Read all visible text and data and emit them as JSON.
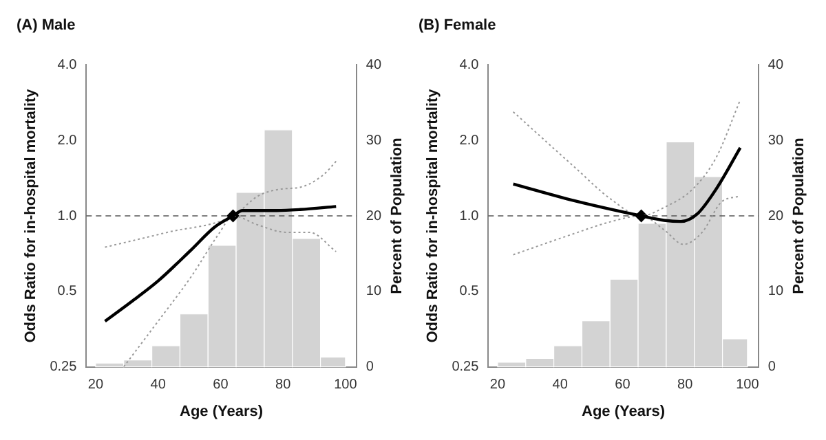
{
  "chart_data": [
    {
      "type": "histogram",
      "title": "(A) Male",
      "xlabel": "Age (Years)",
      "ylabel": "Odds Ratio for in-hospital mortality",
      "y2label": "Percent of Population",
      "log": "y",
      "xlim": [
        17,
        103.5
      ],
      "xticks": [
        20,
        40,
        60,
        80,
        100
      ],
      "ylim": [
        0.25,
        4
      ],
      "yticks": [
        0.25,
        {
          "value": 0.5,
          "label": "0.5"
        },
        {
          "value": 1,
          "label": "1.0"
        },
        {
          "value": 2,
          "label": "2.0"
        },
        {
          "value": 4,
          "label": "4.0"
        }
      ],
      "y2lim": [
        0,
        40
      ],
      "y2ticks": [
        0,
        10,
        20,
        30,
        40
      ],
      "ref_lines": [
        {
          "axis": "y",
          "value": 1,
          "line_style": "dashed",
          "color": "#555555"
        }
      ],
      "series": [
        {
          "axis": "y2",
          "bins": [
            20,
            29,
            38,
            47,
            56,
            65,
            74,
            83,
            92,
            100
          ],
          "values": [
            0.5,
            0.9,
            2.8,
            7.0,
            16.1,
            23.1,
            31.4,
            17.0,
            1.3
          ],
          "color": "#d3d3d3"
        },
        {
          "type": "line",
          "x": [
            23,
            32,
            40,
            50.5,
            58,
            64,
            67,
            78,
            85.5,
            97
          ],
          "values": [
            0.38,
            0.46,
            0.55,
            0.73,
            0.9,
            1.0,
            1.05,
            1.05,
            1.06,
            1.09
          ],
          "color": "#000000",
          "line_style": "solid"
        },
        {
          "type": "line",
          "x": [
            23,
            43,
            64,
            72,
            79.5,
            85.5,
            93,
            97
          ],
          "values": [
            0.75,
            0.86,
            1.0,
            1.2,
            1.28,
            1.3,
            1.46,
            1.65
          ],
          "color": "#999999",
          "line_style": "dotted"
        },
        {
          "type": "line",
          "x": [
            29,
            40,
            50.5,
            59.5,
            64,
            72,
            81,
            88.5,
            97
          ],
          "values": [
            0.25,
            0.38,
            0.57,
            0.85,
            1.0,
            0.92,
            0.86,
            0.86,
            0.72
          ],
          "color": "#999999",
          "line_style": "dotted"
        },
        {
          "type": "scatter",
          "x": [
            64
          ],
          "values": [
            1
          ],
          "marker": "diamond",
          "color": "#000000"
        }
      ]
    },
    {
      "type": "histogram",
      "title": "(B) Female",
      "xlabel": "Age (Years)",
      "ylabel": "Odds Ratio for in-hospital mortality",
      "y2label": "Percent of Population",
      "log": "y",
      "xlim": [
        17,
        103.5
      ],
      "xticks": [
        20,
        40,
        60,
        80,
        100
      ],
      "ylim": [
        0.25,
        4
      ],
      "yticks": [
        0.25,
        {
          "value": 0.5,
          "label": "0.5"
        },
        {
          "value": 1,
          "label": "1.0"
        },
        {
          "value": 2,
          "label": "2.0"
        },
        {
          "value": 4,
          "label": "4.0"
        }
      ],
      "y2lim": [
        0,
        40
      ],
      "y2ticks": [
        0,
        10,
        20,
        30,
        40
      ],
      "ref_lines": [
        {
          "axis": "y",
          "value": 1,
          "line_style": "dashed",
          "color": "#555555"
        }
      ],
      "series": [
        {
          "axis": "y2",
          "bins": [
            20,
            29,
            38,
            47,
            56,
            65,
            74,
            83,
            92,
            100
          ],
          "values": [
            0.6,
            1.1,
            2.8,
            6.1,
            11.6,
            19.0,
            29.8,
            25.2,
            3.7
          ],
          "color": "#d3d3d3"
        },
        {
          "type": "line",
          "x": [
            25,
            44.5,
            66,
            73.3,
            78.7,
            84,
            90,
            97.7
          ],
          "values": [
            1.34,
            1.15,
            1.0,
            0.96,
            0.95,
            1.02,
            1.28,
            1.87
          ],
          "color": "#000000",
          "line_style": "solid"
        },
        {
          "type": "line",
          "x": [
            25,
            44.5,
            56.5,
            66,
            73.3,
            82.5,
            90,
            97.7
          ],
          "values": [
            2.6,
            1.57,
            1.16,
            1.0,
            1.08,
            1.28,
            1.71,
            2.9
          ],
          "color": "#999999",
          "line_style": "dotted"
        },
        {
          "type": "line",
          "x": [
            25,
            44.5,
            56.5,
            66,
            73.3,
            79.5,
            85.5,
            91.5,
            97.7
          ],
          "values": [
            0.7,
            0.85,
            0.95,
            1.0,
            0.88,
            0.77,
            0.86,
            1.13,
            1.2
          ],
          "color": "#999999",
          "line_style": "dotted"
        },
        {
          "type": "scatter",
          "x": [
            66
          ],
          "values": [
            1
          ],
          "marker": "diamond",
          "color": "#000000"
        }
      ]
    }
  ]
}
